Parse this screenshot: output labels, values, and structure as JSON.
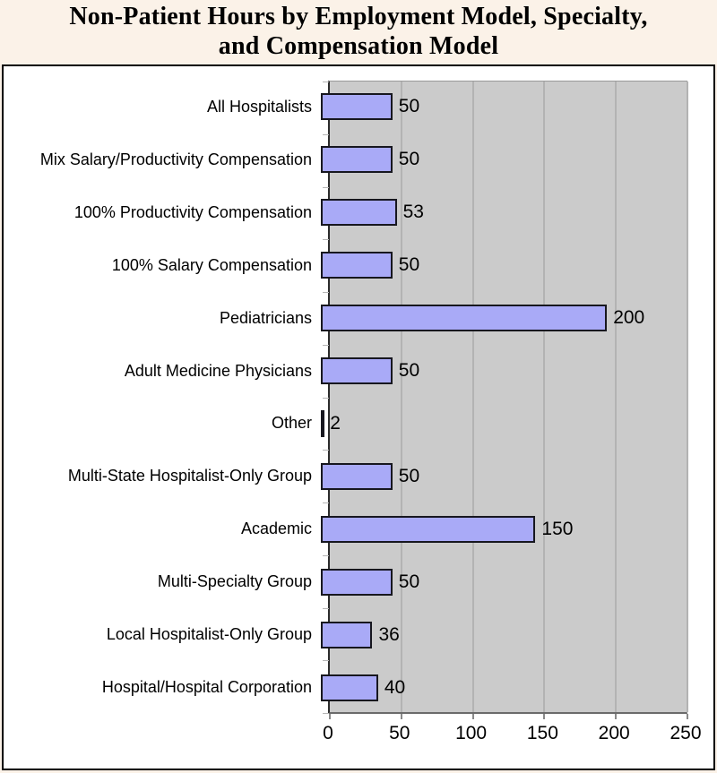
{
  "title": {
    "line1": "Non-Patient Hours by Employment Model, Specialty,",
    "line2": "and Compensation Model"
  },
  "chart_data": {
    "type": "bar",
    "orientation": "horizontal",
    "title": "Non-Patient Hours by Employment Model, Specialty, and Compensation Model",
    "categories": [
      "All Hospitalists",
      "Mix Salary/Productivity Compensation",
      "100% Productivity Compensation",
      "100% Salary Compensation",
      "Pediatricians",
      "Adult Medicine Physicians",
      "Other",
      "Multi-State Hospitalist-Only Group",
      "Academic",
      "Multi-Specialty Group",
      "Local Hospitalist-Only Group",
      "Hospital/Hospital Corporation"
    ],
    "values": [
      50,
      50,
      53,
      50,
      200,
      50,
      2,
      50,
      150,
      50,
      36,
      40
    ],
    "data_labels": [
      "50",
      "50",
      "53",
      "50",
      "200",
      "50",
      "2",
      "50",
      "150",
      "50",
      "36",
      "40"
    ],
    "xlim": [
      0,
      250
    ],
    "xticks": [
      0,
      50,
      100,
      150,
      200,
      250
    ],
    "xtick_labels": [
      "0",
      "50",
      "100",
      "150",
      "200",
      "250"
    ],
    "grid": true,
    "legend": "none",
    "colors": {
      "page_background": "#FBF2E8",
      "chart_background": "#FFFFFF",
      "plot_background": "#CBCBCB",
      "gridline": "#B3B3B3",
      "bar_fill": "#A9AAF7",
      "bar_border": "#17171F",
      "text": "#000000"
    }
  }
}
